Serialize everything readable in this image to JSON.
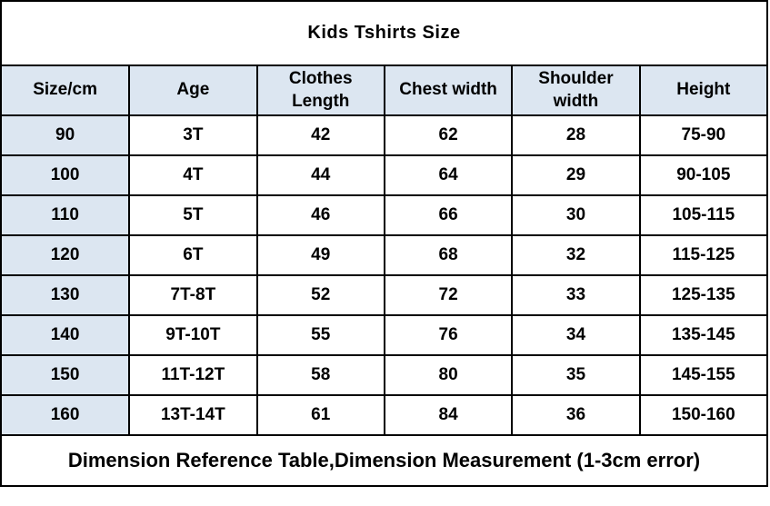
{
  "title": "Kids Tshirts Size",
  "table": {
    "columns": [
      "Size/cm",
      "Age",
      "Clothes\nLength",
      "Chest width",
      "Shoulder\nwidth",
      "Height"
    ],
    "rows": [
      [
        "90",
        "3T",
        "42",
        "62",
        "28",
        "75-90"
      ],
      [
        "100",
        "4T",
        "44",
        "64",
        "29",
        "90-105"
      ],
      [
        "110",
        "5T",
        "46",
        "66",
        "30",
        "105-115"
      ],
      [
        "120",
        "6T",
        "49",
        "68",
        "32",
        "115-125"
      ],
      [
        "130",
        "7T-8T",
        "52",
        "72",
        "33",
        "125-135"
      ],
      [
        "140",
        "9T-10T",
        "55",
        "76",
        "34",
        "135-145"
      ],
      [
        "150",
        "11T-12T",
        "58",
        "80",
        "35",
        "145-155"
      ],
      [
        "160",
        "13T-14T",
        "61",
        "84",
        "36",
        "150-160"
      ]
    ]
  },
  "footnote": "Dimension Reference Table,Dimension Measurement (1-3cm error)",
  "colors": {
    "header_background": "#dce6f1",
    "first_column_background": "#dce6f1",
    "border": "#000000",
    "text": "#000000",
    "page_background": "#ffffff"
  }
}
